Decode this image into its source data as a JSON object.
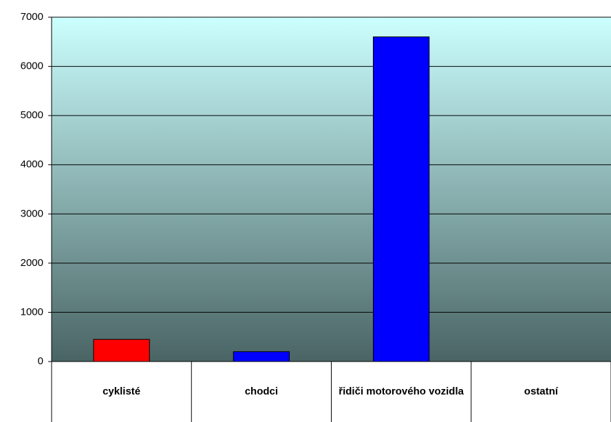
{
  "chart_data": {
    "type": "bar",
    "categories": [
      "cyklisté",
      "chodci",
      "řidiči motorového vozidla",
      "ostatní"
    ],
    "values": [
      450,
      200,
      6600,
      0
    ],
    "colors": [
      "#ff0000",
      "#0000ff",
      "#0000ff",
      "#0000ff"
    ],
    "ylim": [
      0,
      7000
    ],
    "yticks": [
      0,
      1000,
      2000,
      3000,
      4000,
      5000,
      6000,
      7000
    ],
    "grid": true
  }
}
